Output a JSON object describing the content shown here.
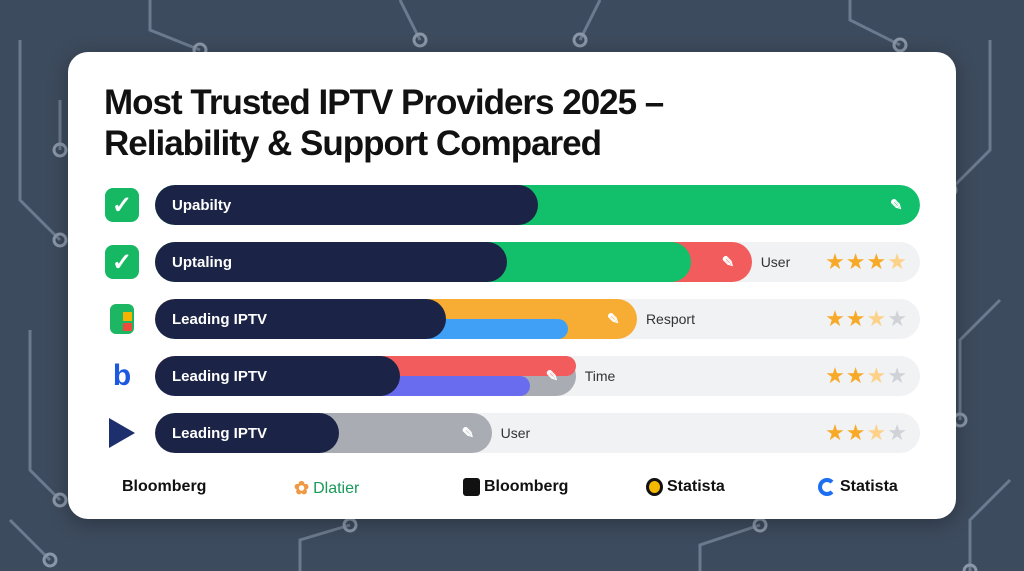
{
  "title_lines": [
    "Most Trusted IPTV Providers 2025 –",
    "Reliability & Support Compared"
  ],
  "colors": {
    "navy": "#1b2446",
    "green": "#12bf6a",
    "red": "#f25c5c",
    "orange": "#f7ad33",
    "blue": "#3fa0f5",
    "purple": "#6a6cf0",
    "grey": "#a9acb2",
    "star": "#f7a928"
  },
  "rows": [
    {
      "icon": "checkmark-icon",
      "label": "Upabilty",
      "side": "",
      "navy_pct": 50,
      "segments": [
        {
          "color": "#12bf6a",
          "end_pct": 100
        }
      ],
      "rating": null
    },
    {
      "icon": "checkmark-icon",
      "label": "Uptaling",
      "side": "User",
      "navy_pct": 46,
      "segments": [
        {
          "color": "#f25c5c",
          "end_pct": 78
        },
        {
          "color": "#12bf6a",
          "end_pct": 70
        }
      ],
      "rating": 3.5
    },
    {
      "icon": "grid-logo-icon",
      "label": "Leading IPTV",
      "side": "Resport",
      "navy_pct": 38,
      "segments": [
        {
          "color": "#f7ad33",
          "end_pct": 63
        },
        {
          "color": "#3fa0f5",
          "end_pct": 54,
          "lower": true
        }
      ],
      "rating": 2.5
    },
    {
      "icon": "b-logo-icon",
      "label": "Leading IPTV",
      "side": "Time",
      "navy_pct": 32,
      "segments": [
        {
          "color": "#a9acb2",
          "end_pct": 55
        },
        {
          "color": "#f25c5c",
          "end_pct": 55,
          "upper": true
        },
        {
          "color": "#6a6cf0",
          "end_pct": 49,
          "lower": true
        }
      ],
      "rating": 2.5
    },
    {
      "icon": "play-logo-icon",
      "label": "Leading IPTV",
      "side": "User",
      "navy_pct": 24,
      "segments": [
        {
          "color": "#a9acb2",
          "end_pct": 44
        }
      ],
      "rating": 2.5
    }
  ],
  "sources": [
    "Bloomberg",
    "Dlatier",
    "Bloomberg",
    "Statista",
    "Statista"
  ]
}
